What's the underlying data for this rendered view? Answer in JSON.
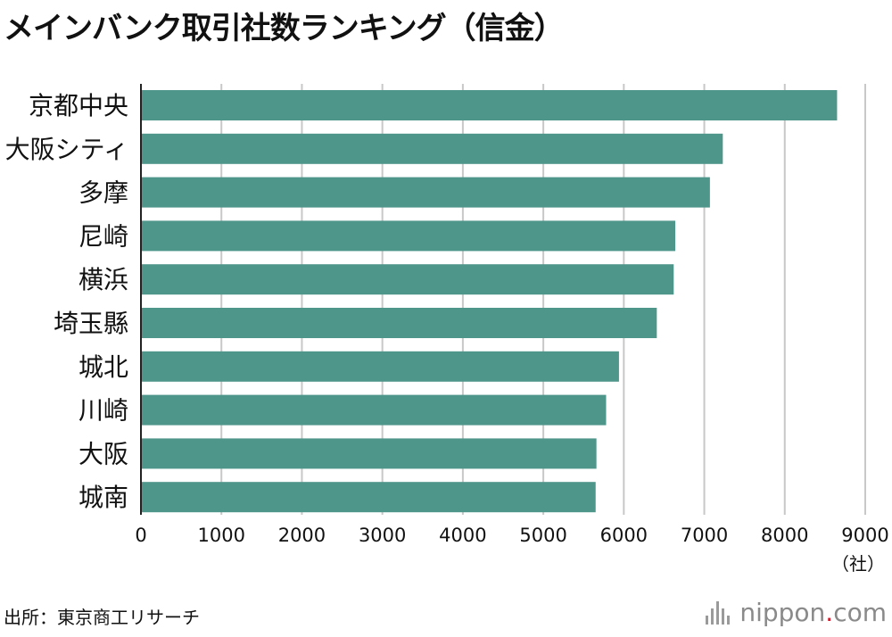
{
  "title": "メインバンク取引社数ランキング（信金）",
  "unit_label": "（社）",
  "source": "出所：東京商工リサーチ",
  "logo": {
    "name": "nippon",
    "dot": ".",
    "suffix": "com"
  },
  "colors": {
    "bar": "#4f968a",
    "grid": "#c8c8c8",
    "axis": "#222222"
  },
  "chart_data": {
    "type": "bar",
    "orientation": "horizontal",
    "categories": [
      "京都中央",
      "大阪シティ",
      "多摩",
      "尼崎",
      "横浜",
      "埼玉縣",
      "城北",
      "川崎",
      "大阪",
      "城南"
    ],
    "values": [
      8650,
      7230,
      7070,
      6640,
      6620,
      6410,
      5940,
      5780,
      5660,
      5650
    ],
    "xlim": [
      0,
      9000
    ],
    "xticks": [
      0,
      1000,
      2000,
      3000,
      4000,
      5000,
      6000,
      7000,
      8000,
      9000
    ],
    "grid": true
  }
}
